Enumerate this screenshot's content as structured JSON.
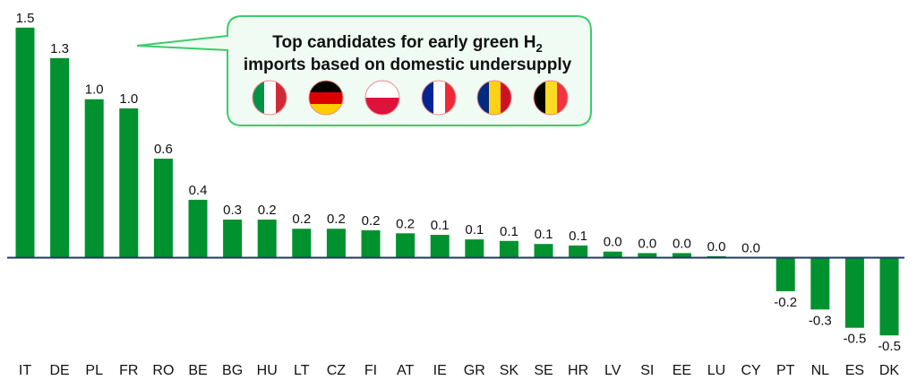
{
  "chart_data": {
    "type": "bar",
    "title": "",
    "xlabel": "",
    "ylabel": "",
    "ylim": [
      -0.55,
      1.55
    ],
    "grid": false,
    "categories": [
      "IT",
      "DE",
      "PL",
      "FR",
      "RO",
      "BE",
      "BG",
      "HU",
      "LT",
      "CZ",
      "FI",
      "AT",
      "IE",
      "GR",
      "SK",
      "SE",
      "HR",
      "LV",
      "SI",
      "EE",
      "LU",
      "CY",
      "PT",
      "NL",
      "ES",
      "DK"
    ],
    "values": [
      1.51,
      1.31,
      1.04,
      0.98,
      0.65,
      0.38,
      0.25,
      0.25,
      0.19,
      0.19,
      0.18,
      0.16,
      0.15,
      0.12,
      0.11,
      0.09,
      0.08,
      0.04,
      0.03,
      0.03,
      0.01,
      0.0,
      -0.22,
      -0.34,
      -0.46,
      -0.51
    ],
    "labels": [
      "1.5",
      "1.3",
      "1.0",
      "1.0",
      "0.6",
      "0.4",
      "0.3",
      "0.2",
      "0.2",
      "0.2",
      "0.2",
      "0.2",
      "0.1",
      "0.1",
      "0.1",
      "0.1",
      "0.1",
      "0.0",
      "0.0",
      "0.0",
      "0.0",
      "0.0",
      "-0.2",
      "-0.3",
      "-0.5",
      "-0.5"
    ],
    "bar_color": "#00922e",
    "axis_color": "#1f3a68"
  },
  "callout": {
    "line1": "Top candidates for early green H",
    "line1_sub": "2",
    "line2": "imports based on domestic undersupply",
    "flags": [
      "italy-flag",
      "germany-flag",
      "poland-flag",
      "france-flag",
      "romania-flag",
      "belgium-flag"
    ],
    "border_color": "#3dcc6a",
    "fill_color": "#effbf3"
  }
}
